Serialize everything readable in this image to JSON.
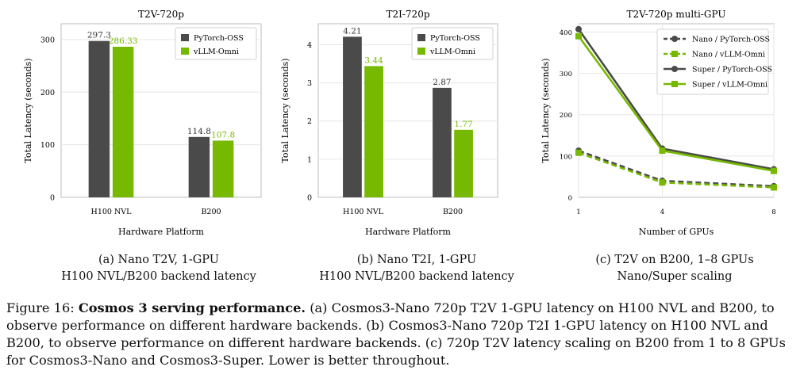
{
  "colors": {
    "pytorch": "#4a4a4a",
    "vllm": "#76b900",
    "grid": "#e6e6e6",
    "frame": "#bdbdbd"
  },
  "chart_data": [
    {
      "type": "bar",
      "title": "T2V-720p",
      "xlabel": "Hardware Platform",
      "ylabel": "Total Latency (seconds)",
      "categories": [
        "H100 NVL",
        "B200"
      ],
      "series": [
        {
          "name": "PyTorch-OSS",
          "values": [
            297.3,
            114.8
          ],
          "labels": [
            "297.3",
            "114.8"
          ]
        },
        {
          "name": "vLLM-Omni",
          "values": [
            286.33,
            107.8
          ],
          "labels": [
            "286.33",
            "107.8"
          ]
        }
      ],
      "ylim": [
        0,
        330
      ],
      "yticks": [
        0,
        100,
        200,
        300
      ],
      "legend": "top-right",
      "grid": true
    },
    {
      "type": "bar",
      "title": "T2I-720p",
      "xlabel": "Hardware Platform",
      "ylabel": "Total Latency (seconds)",
      "categories": [
        "H100 NVL",
        "B200"
      ],
      "series": [
        {
          "name": "PyTorch-OSS",
          "values": [
            4.21,
            2.87
          ],
          "labels": [
            "4.21",
            "2.87"
          ]
        },
        {
          "name": "vLLM-Omni",
          "values": [
            3.44,
            1.77
          ],
          "labels": [
            "3.44",
            "1.77"
          ]
        }
      ],
      "ylim": [
        0,
        4.55
      ],
      "yticks": [
        0,
        1,
        2,
        3,
        4
      ],
      "legend": "top-right",
      "grid": true
    },
    {
      "type": "line",
      "title": "T2V-720p multi-GPU",
      "xlabel": "Number of GPUs",
      "ylabel": "Total Latency (seconds)",
      "x": [
        1,
        4,
        8
      ],
      "xticks": [
        1,
        4,
        8
      ],
      "series": [
        {
          "name": "Nano / PyTorch-OSS",
          "values": [
            113,
            40,
            27
          ],
          "style": "dashed",
          "marker": "circle",
          "color": "#4a4a4a"
        },
        {
          "name": "Nano / vLLM-Omni",
          "values": [
            108,
            36,
            24
          ],
          "style": "dashed",
          "marker": "square",
          "color": "#76b900"
        },
        {
          "name": "Super / PyTorch-OSS",
          "values": [
            407,
            118,
            68
          ],
          "style": "solid",
          "marker": "circle",
          "color": "#4a4a4a"
        },
        {
          "name": "Super / vLLM-Omni",
          "values": [
            390,
            113,
            64
          ],
          "style": "solid",
          "marker": "square",
          "color": "#76b900"
        }
      ],
      "xlim": [
        1,
        8
      ],
      "ylim": [
        0,
        420
      ],
      "yticks": [
        0,
        100,
        200,
        300,
        400
      ],
      "legend": "top-right",
      "grid": true
    }
  ],
  "subcaptions": [
    {
      "line1": "(a) Nano T2V, 1-GPU",
      "line2": "H100 NVL/B200 backend latency"
    },
    {
      "line1": "(b) Nano T2I, 1-GPU",
      "line2": "H100 NVL/B200 backend latency"
    },
    {
      "line1": "(c) T2V on B200, 1–8 GPUs",
      "line2": "Nano/Super scaling"
    }
  ],
  "caption": {
    "label": "Figure 16: ",
    "bold": "Cosmos 3 serving performance.",
    "text": " (a) Cosmos3-Nano 720p T2V 1-GPU latency on H100 NVL and B200, to observe performance on different hardware backends. (b) Cosmos3-Nano 720p T2I 1-GPU latency on H100 NVL and B200, to observe performance on different hardware backends. (c) 720p T2V latency scaling on B200 from 1 to 8 GPUs for Cosmos3-Nano and Cosmos3-Super. Lower is better throughout."
  }
}
